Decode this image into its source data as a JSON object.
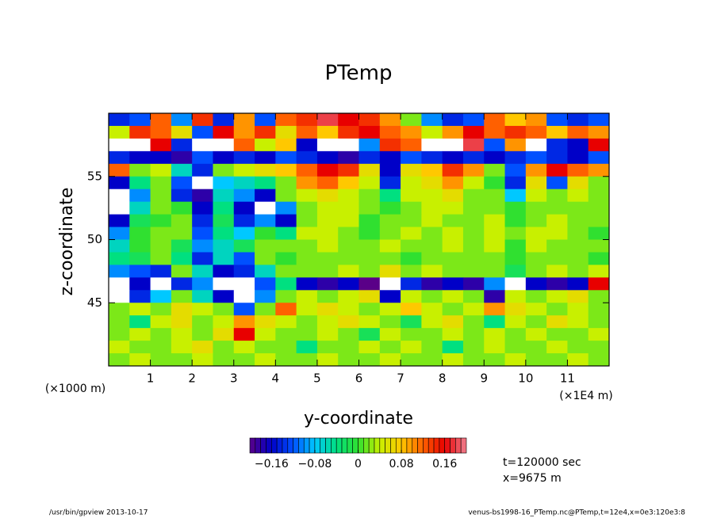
{
  "chart_data": {
    "type": "heatmap",
    "title": "PTemp",
    "x_label": "y-coordinate",
    "y_label": "z-coordinate",
    "x_unit": "(×1E4 m)",
    "y_unit": "(×1000 m)",
    "annotations": [
      "t=120000 sec",
      "x=9675 m"
    ],
    "footer_left": "/usr/bin/gpview   2013-10-17",
    "footer_right": "venus-bs1998-16_PTemp.nc@PTemp,t=12e4,x=0e3:120e3:8",
    "xlim": [
      0,
      12
    ],
    "xticks": [
      1,
      2,
      3,
      4,
      5,
      6,
      7,
      8,
      9,
      10,
      11
    ],
    "ylim": [
      40,
      60
    ],
    "yticks": [
      45,
      50,
      55
    ],
    "clim": [
      -0.2,
      0.2
    ],
    "cticks": [
      {
        "value": -0.16,
        "label": "−0.16"
      },
      {
        "value": -0.08,
        "label": "−0.08"
      },
      0,
      0.08,
      0.16
    ],
    "colormap": [
      "#5a0088",
      "#0000c8",
      "#0050ff",
      "#00c8ff",
      "#00e080",
      "#30e030",
      "#c8f000",
      "#ffc800",
      "#ff6000",
      "#e80000",
      "#f08090"
    ],
    "x": [
      0.25,
      0.75,
      1.25,
      1.75,
      2.25,
      2.75,
      3.25,
      3.75,
      4.25,
      4.75,
      5.25,
      5.75,
      6.25,
      6.75,
      7.25,
      7.75,
      8.25,
      8.75,
      9.25,
      9.75,
      10.25,
      10.75,
      11.25,
      11.75
    ],
    "y": [
      59.5,
      58.5,
      57.5,
      56.5,
      55.5,
      54.5,
      53.5,
      52.5,
      51.5,
      50.5,
      49.5,
      48.5,
      47.5,
      46.5,
      45.5,
      44.5,
      43.5,
      42.5,
      41.5,
      40.5
    ],
    "z": [
      [
        -0.14,
        -0.12,
        0.12,
        -0.1,
        0.14,
        -0.14,
        0.1,
        -0.12,
        0.12,
        0.14,
        0.18,
        0.16,
        0.14,
        0.1,
        0.02,
        -0.1,
        -0.14,
        -0.12,
        0.12,
        0.08,
        0.1,
        -0.12,
        -0.14,
        -0.12
      ],
      [
        0.04,
        0.14,
        0.12,
        0.06,
        -0.12,
        0.16,
        0.1,
        0.14,
        0.06,
        0.12,
        0.08,
        0.14,
        0.16,
        0.12,
        0.1,
        0.04,
        0.1,
        0.16,
        0.12,
        0.14,
        0.12,
        0.08,
        0.12,
        0.1
      ],
      [
        0.3,
        0.3,
        0.16,
        -0.14,
        0.3,
        0.3,
        0.12,
        0.04,
        0.08,
        -0.16,
        0.3,
        0.3,
        -0.1,
        0.14,
        0.12,
        0.3,
        0.3,
        0.18,
        -0.12,
        0.1,
        0.3,
        -0.14,
        -0.16,
        0.16
      ],
      [
        -0.14,
        -0.16,
        -0.16,
        -0.18,
        -0.12,
        -0.16,
        -0.14,
        -0.16,
        -0.12,
        -0.14,
        -0.16,
        -0.18,
        -0.14,
        -0.16,
        -0.12,
        -0.14,
        -0.16,
        -0.14,
        -0.16,
        -0.14,
        -0.12,
        -0.14,
        -0.16,
        -0.12
      ],
      [
        0.12,
        0.02,
        0.04,
        -0.06,
        -0.14,
        0.02,
        0.04,
        0.06,
        0.08,
        0.12,
        0.16,
        0.14,
        0.06,
        -0.16,
        0.06,
        0.08,
        0.14,
        0.1,
        0.02,
        -0.12,
        0.1,
        0.16,
        0.12,
        0.1
      ],
      [
        -0.16,
        -0.04,
        0.02,
        -0.12,
        -0.3,
        -0.08,
        -0.06,
        -0.04,
        0.02,
        0.1,
        0.12,
        0.08,
        0.04,
        -0.14,
        0.04,
        0.06,
        0.1,
        0.04,
        0,
        -0.14,
        0.06,
        -0.12,
        0.06,
        0.02
      ],
      [
        -0.3,
        -0.1,
        0.02,
        -0.14,
        -0.18,
        -0.06,
        -0.1,
        -0.16,
        0.02,
        0.04,
        0.06,
        0.04,
        0.02,
        -0.04,
        0.04,
        0.04,
        0.06,
        0.02,
        0.02,
        -0.08,
        0.04,
        0.02,
        0.04,
        0.02
      ],
      [
        -0.3,
        -0.06,
        0.02,
        0,
        -0.16,
        -0.04,
        -0.16,
        -0.3,
        -0.1,
        0.02,
        0.04,
        0.04,
        0.02,
        0,
        0.02,
        0.04,
        0.04,
        0.02,
        0.02,
        0,
        0.02,
        0.02,
        0.02,
        0.02
      ],
      [
        -0.16,
        -0.02,
        0,
        0.02,
        -0.14,
        -0.02,
        -0.14,
        -0.1,
        -0.16,
        0.02,
        0.04,
        0.04,
        0,
        0.02,
        0.02,
        0.04,
        0.02,
        0.02,
        0.04,
        0,
        0.02,
        0.04,
        0.02,
        0.02
      ],
      [
        -0.1,
        0,
        0.02,
        0.02,
        -0.12,
        -0.04,
        -0.08,
        0,
        -0.04,
        0.04,
        0.04,
        0.02,
        0,
        0.02,
        0.04,
        0.02,
        0.04,
        0.02,
        0.04,
        0.02,
        0.04,
        0.04,
        0.02,
        0
      ],
      [
        -0.06,
        0,
        0.02,
        -0.02,
        -0.1,
        -0.06,
        -0.02,
        0.02,
        0.02,
        0.02,
        0.04,
        0.02,
        0.02,
        0.04,
        0.02,
        0.02,
        0.04,
        0.02,
        0.04,
        0,
        0.04,
        0.02,
        0.02,
        0.02
      ],
      [
        -0.04,
        -0.02,
        0.02,
        -0.04,
        -0.14,
        -0.06,
        -0.12,
        0.02,
        0,
        0.02,
        0.02,
        0.02,
        0.02,
        0.02,
        0,
        0.02,
        0.02,
        0.02,
        0.02,
        0,
        0.02,
        0.02,
        0.02,
        0
      ],
      [
        -0.1,
        -0.12,
        -0.14,
        0.02,
        -0.06,
        -0.16,
        -0.14,
        -0.06,
        0.02,
        0.02,
        0.02,
        0.04,
        0.02,
        0.06,
        0.02,
        0.04,
        0.02,
        0.02,
        0.02,
        -0.02,
        0.02,
        0.04,
        0.02,
        0.04
      ],
      [
        0.3,
        -0.16,
        0.3,
        -0.14,
        -0.1,
        0.3,
        0.3,
        -0.12,
        -0.04,
        -0.16,
        -0.18,
        -0.16,
        -0.2,
        0.3,
        -0.14,
        -0.18,
        -0.16,
        -0.18,
        -0.1,
        0.3,
        -0.16,
        -0.18,
        -0.16,
        0.16
      ],
      [
        0.3,
        -0.14,
        -0.08,
        0.02,
        -0.06,
        -0.16,
        0.3,
        -0.1,
        0.02,
        0.04,
        0.02,
        0.04,
        0.06,
        -0.16,
        0.04,
        0.02,
        0.04,
        0.02,
        -0.18,
        0.04,
        0.02,
        0.04,
        0.06,
        0.02
      ],
      [
        0.02,
        0.04,
        0.02,
        0.06,
        0.04,
        0.02,
        -0.12,
        0.02,
        0.12,
        0.04,
        0.06,
        0.04,
        0.02,
        0.04,
        0.08,
        0.04,
        0.02,
        0.04,
        0.1,
        0.06,
        0.04,
        0.02,
        0.04,
        0.02
      ],
      [
        0.02,
        -0.04,
        0.04,
        0.06,
        0.02,
        0.04,
        0.1,
        0.06,
        0.04,
        0.02,
        0.04,
        0.06,
        0.04,
        0.02,
        -0.02,
        0.04,
        0.06,
        0.02,
        -0.04,
        0.04,
        0.02,
        0.06,
        0.04,
        0.02
      ],
      [
        0.02,
        0.04,
        0.02,
        0.04,
        0.02,
        0.06,
        0.16,
        0.04,
        0.02,
        0.02,
        0.04,
        0.02,
        -0.02,
        0.04,
        0.02,
        0.02,
        0.04,
        0.02,
        0.04,
        0.02,
        0.04,
        0.02,
        0.02,
        0.04
      ],
      [
        0.04,
        0.02,
        0.02,
        0.04,
        0.06,
        0.02,
        0.04,
        0.02,
        0.02,
        -0.04,
        0.02,
        0.02,
        0.04,
        0.02,
        0.04,
        0.02,
        -0.04,
        0.02,
        0.04,
        0.02,
        0.02,
        0.04,
        0.02,
        0.02
      ],
      [
        0.02,
        0.04,
        0.02,
        0.02,
        0.04,
        0.02,
        0.02,
        0.04,
        0.02,
        0.02,
        0.04,
        0.02,
        0.02,
        0.04,
        0.02,
        0.02,
        0.04,
        0.02,
        0.02,
        0.04,
        0.02,
        0.02,
        0.04,
        0.02
      ]
    ]
  }
}
